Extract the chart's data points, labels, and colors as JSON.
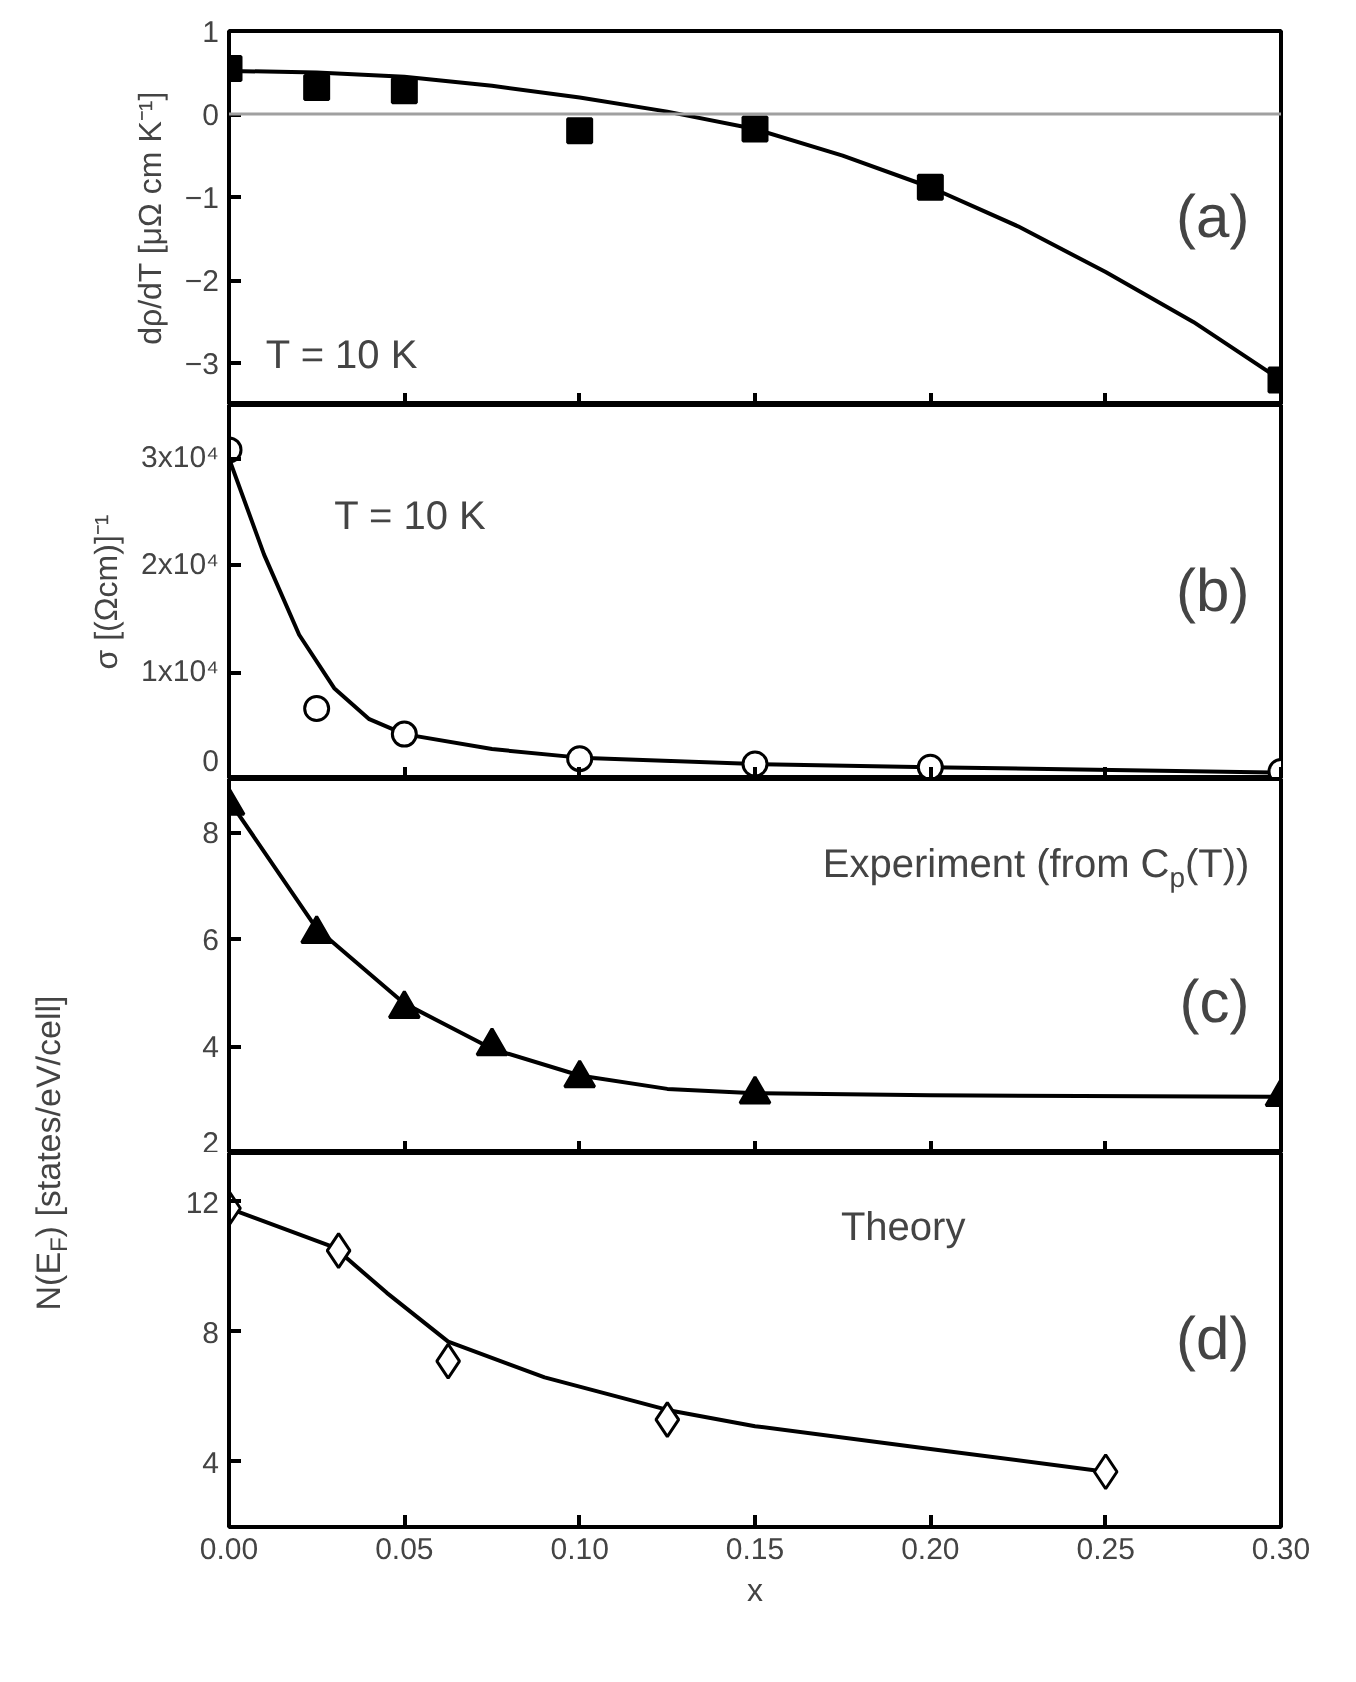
{
  "chart_data": [
    {
      "type": "scatter",
      "ylabel": "dρ/dT [μΩ cm K⁻¹]",
      "xlim": [
        0,
        0.3
      ],
      "xticks": [
        0,
        0.05,
        0.1,
        0.15,
        0.2,
        0.25,
        0.3
      ],
      "ylim": [
        -3.5,
        1
      ],
      "yticks": [
        -3,
        -2,
        -1,
        0,
        1
      ],
      "tick_labels": "y",
      "grid": false,
      "ref_lines": [
        {
          "axis": "y",
          "value": 0,
          "color": "#a0a0a0"
        }
      ],
      "annotations": [
        "T = 10 K",
        "(a)"
      ],
      "series": [
        {
          "marker": "square",
          "color": "#000000",
          "x": [
            0,
            0.025,
            0.05,
            0.1,
            0.15,
            0.2,
            0.3
          ],
          "values": [
            0.55,
            0.32,
            0.28,
            -0.2,
            -0.18,
            -0.88,
            -3.2
          ]
        },
        {
          "type": "line",
          "color": "#000000",
          "x": [
            0,
            0.025,
            0.05,
            0.075,
            0.1,
            0.125,
            0.15,
            0.175,
            0.2,
            0.225,
            0.25,
            0.275,
            0.3
          ],
          "values": [
            0.52,
            0.5,
            0.45,
            0.34,
            0.2,
            0.03,
            -0.18,
            -0.5,
            -0.88,
            -1.35,
            -1.9,
            -2.5,
            -3.2
          ]
        }
      ]
    },
    {
      "type": "scatter",
      "ylabel": "σ [(Ωcm)]⁻¹",
      "xlim": [
        0,
        0.3
      ],
      "xticks": [
        0,
        0.05,
        0.1,
        0.15,
        0.2,
        0.25,
        0.3
      ],
      "ylim": [
        0,
        35000
      ],
      "yticks": [
        0,
        {
          "value": 10000,
          "label": "1x10⁴"
        },
        {
          "value": 20000,
          "label": "2x10⁴"
        },
        {
          "value": 30000,
          "label": "3x10⁴"
        }
      ],
      "tick_labels": "y",
      "grid": false,
      "annotations": [
        "T = 10 K",
        "(b)"
      ],
      "series": [
        {
          "type": "line",
          "color": "#000000",
          "x": [
            0,
            0.01,
            0.02,
            0.03,
            0.04,
            0.05,
            0.075,
            0.1,
            0.15,
            0.2,
            0.3
          ],
          "values": [
            30000,
            21000,
            13500,
            8500,
            5600,
            4200,
            2800,
            2000,
            1400,
            1100,
            600
          ]
        },
        {
          "marker": "circle",
          "color": "#ffffff",
          "x": [
            0,
            0.025,
            0.05,
            0.1,
            0.15,
            0.2,
            0.3
          ],
          "values": [
            30800,
            6600,
            4200,
            1900,
            1400,
            1100,
            700
          ]
        }
      ]
    },
    {
      "type": "scatter",
      "xlim": [
        0,
        0.3
      ],
      "xticks": [
        0,
        0.05,
        0.1,
        0.15,
        0.2,
        0.25,
        0.3
      ],
      "ylim": [
        2,
        9
      ],
      "yticks": [
        2,
        4,
        6,
        8
      ],
      "tick_labels": "y",
      "grid": false,
      "annotations": [
        "Experiment (from C$_{p}$(T))",
        "(c)"
      ],
      "series": [
        {
          "type": "line",
          "color": "#000000",
          "x": [
            0,
            0.025,
            0.05,
            0.075,
            0.1,
            0.125,
            0.15,
            0.2,
            0.3
          ],
          "values": [
            8.6,
            6.2,
            4.8,
            3.95,
            3.45,
            3.2,
            3.12,
            3.08,
            3.05
          ]
        },
        {
          "marker": "triangle",
          "color": "#000000",
          "x": [
            0,
            0.025,
            0.05,
            0.075,
            0.1,
            0.15,
            0.3
          ],
          "values": [
            8.5,
            6.1,
            4.7,
            4.0,
            3.4,
            3.1,
            3.05
          ]
        }
      ]
    },
    {
      "type": "scatter",
      "xlabel": "x",
      "ylabel": "N(E$_{F}$) [states/eV/cell]",
      "xlim": [
        0,
        0.3
      ],
      "xticks": [
        {
          "value": 0,
          "label": "0.00"
        },
        0.05,
        {
          "value": 0.1,
          "label": "0.10"
        },
        0.15,
        {
          "value": 0.2,
          "label": "0.20"
        },
        0.25,
        {
          "value": 0.3,
          "label": "0.30"
        }
      ],
      "ylim": [
        2,
        13.5
      ],
      "yticks": [
        4,
        8,
        12
      ],
      "grid": false,
      "annotations": [
        "Theory",
        "(d)"
      ],
      "series": [
        {
          "type": "line",
          "color": "#000000",
          "x": [
            0,
            0.03,
            0.045,
            0.0625,
            0.09,
            0.125,
            0.15,
            0.2,
            0.25
          ],
          "values": [
            11.8,
            10.6,
            9.2,
            7.7,
            6.6,
            5.6,
            5.1,
            4.4,
            3.7
          ]
        },
        {
          "marker": "diamond",
          "color": "#ffffff",
          "x": [
            0,
            0.03125,
            0.0625,
            0.125,
            0.25
          ],
          "values": [
            11.8,
            10.5,
            7.1,
            5.3,
            3.7
          ]
        }
      ]
    }
  ]
}
